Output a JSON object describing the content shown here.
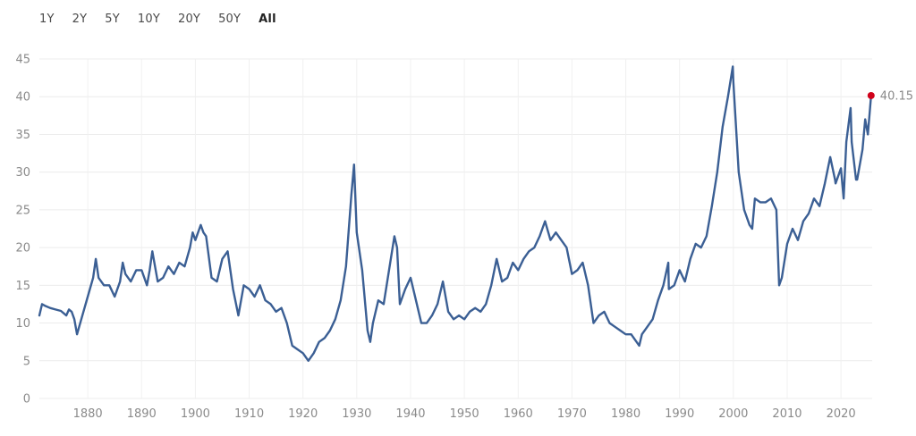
{
  "range_selector": {
    "buttons": [
      {
        "label": "1Y",
        "active": false
      },
      {
        "label": "2Y",
        "active": false
      },
      {
        "label": "5Y",
        "active": false
      },
      {
        "label": "10Y",
        "active": false
      },
      {
        "label": "20Y",
        "active": false
      },
      {
        "label": "50Y",
        "active": false
      },
      {
        "label": "All",
        "active": true
      }
    ]
  },
  "chart_data": {
    "type": "line",
    "title": "",
    "xlabel": "",
    "ylabel": "",
    "xlim": [
      1871,
      2025.8
    ],
    "ylim": [
      0,
      45
    ],
    "yticks": [
      "0",
      "5",
      "10",
      "15",
      "20",
      "25",
      "30",
      "35",
      "40",
      "45"
    ],
    "xticks": [
      "1880",
      "1890",
      "1900",
      "1910",
      "1920",
      "1930",
      "1940",
      "1950",
      "1960",
      "1970",
      "1980",
      "1990",
      "2000",
      "2010",
      "2020"
    ],
    "grid": true,
    "legend": "none",
    "line_color": "#3b5f94",
    "last_point_color": "#d0021b",
    "last_value_label": "40.15",
    "series": [
      {
        "x": [
          1871,
          1871.5,
          1872,
          1873,
          1874,
          1875,
          1876,
          1876.5,
          1877,
          1877.5,
          1878,
          1879,
          1880,
          1881,
          1881.5,
          1882,
          1883,
          1884,
          1885,
          1886,
          1886.5,
          1887,
          1888,
          1889,
          1890,
          1891,
          1891.5,
          1892,
          1893,
          1894,
          1895,
          1896,
          1897,
          1898,
          1899,
          1899.5,
          1900,
          1901,
          1901.5,
          1902,
          1903,
          1904,
          1905,
          1906,
          1907,
          1908,
          1909,
          1910,
          1911,
          1912,
          1913,
          1914,
          1915,
          1916,
          1917,
          1918,
          1919,
          1920,
          1920.5,
          1921,
          1922,
          1923,
          1924,
          1925,
          1926,
          1927,
          1928,
          1929,
          1929.5,
          1930,
          1931,
          1932,
          1932.5,
          1933,
          1934,
          1935,
          1936,
          1937,
          1937.5,
          1938,
          1939,
          1940,
          1941,
          1942,
          1943,
          1944,
          1945,
          1946,
          1947,
          1948,
          1949,
          1950,
          1951,
          1952,
          1953,
          1954,
          1955,
          1956,
          1957,
          1958,
          1959,
          1960,
          1961,
          1962,
          1963,
          1964,
          1965,
          1966,
          1967,
          1968,
          1969,
          1970,
          1971,
          1972,
          1973,
          1974,
          1975,
          1976,
          1977,
          1978,
          1979,
          1980,
          1981,
          1982,
          1982.5,
          1983,
          1984,
          1985,
          1986,
          1987,
          1987.9,
          1988,
          1989,
          1990,
          1991,
          1992,
          1993,
          1994,
          1995,
          1996,
          1997,
          1998,
          1999,
          1999.9,
          2000,
          2001,
          2002,
          2003,
          2003.5,
          2004,
          2005,
          2006,
          2007,
          2008,
          2008.5,
          2009,
          2010,
          2011,
          2012,
          2013,
          2014,
          2015,
          2016,
          2017,
          2018,
          2018.9,
          2019,
          2020,
          2020.5,
          2021,
          2021.8,
          2022,
          2022.8,
          2023,
          2024,
          2024.5,
          2025,
          2025.6
        ],
        "y": [
          11.0,
          12.5,
          12.3,
          12.0,
          11.8,
          11.6,
          11.0,
          11.8,
          11.5,
          10.5,
          8.5,
          11.0,
          13.5,
          16.0,
          18.5,
          16.0,
          15.0,
          15.0,
          13.5,
          15.5,
          18.0,
          16.5,
          15.5,
          17.0,
          17.0,
          15.0,
          17.0,
          19.5,
          15.5,
          16.0,
          17.5,
          16.5,
          18.0,
          17.5,
          20.0,
          22.0,
          21.0,
          23.0,
          22.0,
          21.5,
          16.0,
          15.5,
          18.5,
          19.5,
          14.5,
          11.0,
          15.0,
          14.5,
          13.5,
          15.0,
          13.0,
          12.5,
          11.5,
          12.0,
          10.0,
          7.0,
          6.5,
          6.0,
          5.5,
          5.0,
          6.0,
          7.5,
          8.0,
          9.0,
          10.5,
          13.0,
          17.5,
          27.0,
          31.0,
          22.0,
          17.0,
          9.0,
          7.5,
          10.0,
          13.0,
          12.5,
          17.0,
          21.5,
          20.0,
          12.5,
          14.5,
          16.0,
          13.0,
          10.0,
          10.0,
          11.0,
          12.5,
          15.5,
          11.5,
          10.5,
          11.0,
          10.5,
          11.5,
          12.0,
          11.5,
          12.5,
          15.0,
          18.5,
          15.5,
          16.0,
          18.0,
          17.0,
          18.5,
          19.5,
          20.0,
          21.5,
          23.5,
          21.0,
          22.0,
          21.0,
          20.0,
          16.5,
          17.0,
          18.0,
          15.0,
          10.0,
          11.0,
          11.5,
          10.0,
          9.5,
          9.0,
          8.5,
          8.5,
          7.5,
          7.0,
          8.5,
          9.5,
          10.5,
          13.0,
          15.0,
          18.0,
          14.5,
          15.0,
          17.0,
          15.5,
          18.5,
          20.5,
          20.0,
          21.5,
          25.5,
          30.0,
          36.0,
          40.0,
          44.0,
          42.0,
          30.0,
          25.0,
          23.0,
          22.5,
          26.5,
          26.0,
          26.0,
          26.5,
          25.0,
          15.0,
          16.0,
          20.5,
          22.5,
          21.0,
          23.5,
          24.5,
          26.5,
          25.5,
          28.5,
          32.0,
          29.0,
          28.5,
          30.5,
          26.5,
          34.0,
          38.5,
          34.0,
          29.0,
          29.0,
          33.0,
          37.0,
          35.0,
          40.15
        ]
      }
    ]
  }
}
